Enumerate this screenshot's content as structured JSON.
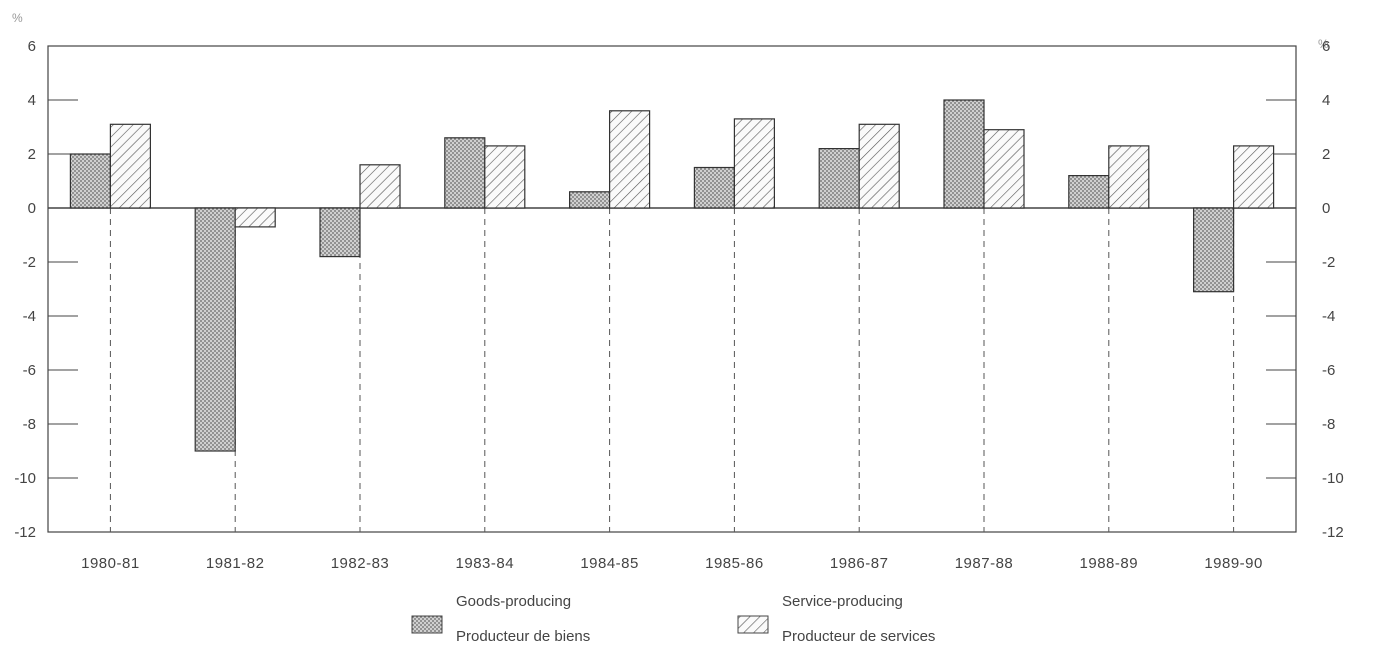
{
  "chart_data": {
    "type": "bar",
    "categories": [
      "1980-81",
      "1981-82",
      "1982-83",
      "1983-84",
      "1984-85",
      "1985-86",
      "1986-87",
      "1987-88",
      "1988-89",
      "1989-90"
    ],
    "series": [
      {
        "values": [
          2.0,
          -9.0,
          -1.8,
          2.6,
          0.6,
          1.5,
          2.2,
          4.0,
          1.2,
          -3.1
        ]
      },
      {
        "values": [
          3.1,
          -0.7,
          1.6,
          2.3,
          3.6,
          3.3,
          3.1,
          2.9,
          2.3,
          2.3
        ]
      }
    ],
    "ylim": [
      -12,
      6
    ],
    "yticks": [
      6,
      4,
      2,
      0,
      -2,
      -4,
      -6,
      -8,
      -10,
      -12
    ],
    "yunit": "%",
    "legend": [
      {
        "line1": "Goods-producing",
        "line2": "Producteur de biens",
        "pattern": "dots"
      },
      {
        "line1": "Service-producing",
        "line2": "Producteur de services",
        "pattern": "hatch"
      }
    ],
    "legend_position": "bottom-center",
    "grid": false
  }
}
